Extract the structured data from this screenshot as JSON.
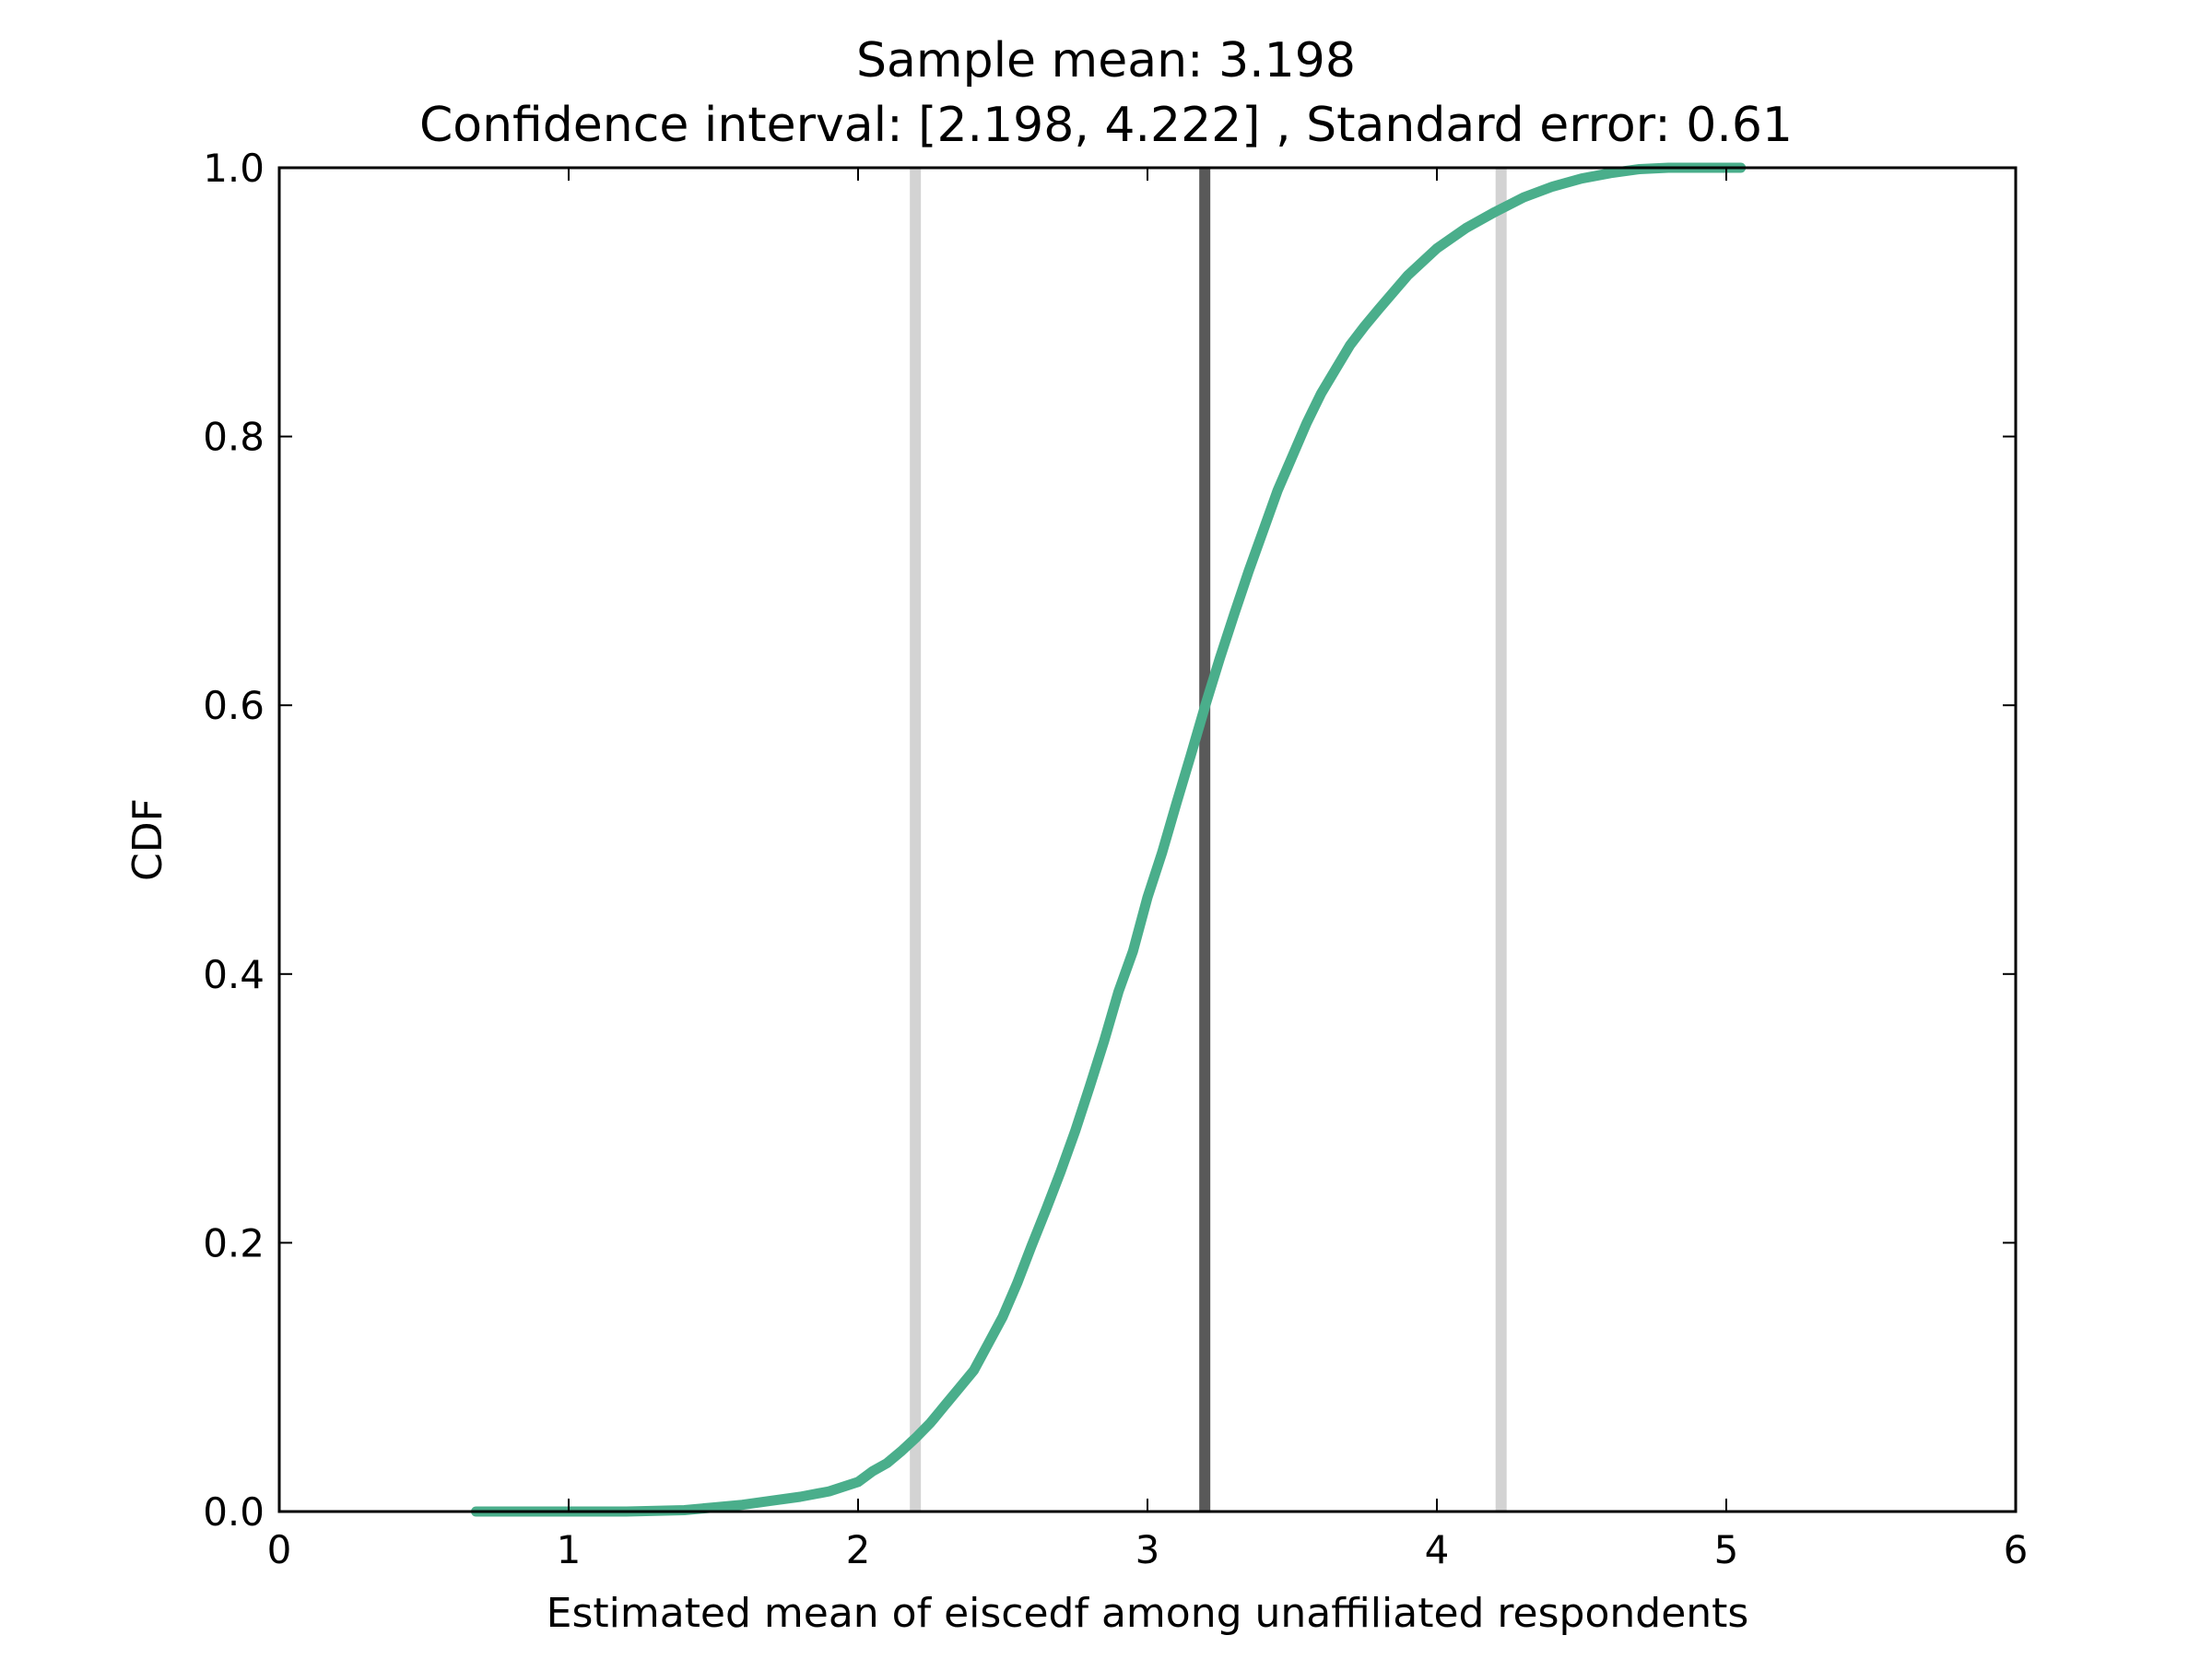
{
  "title_lines": [
    "Sample mean: 3.198",
    "Confidence interval: [2.198, 4.222] , Standard error: 0.61"
  ],
  "chart_data": {
    "type": "line",
    "title": "Sample mean: 3.198\nConfidence interval: [2.198, 4.222] , Standard error: 0.61",
    "xlabel": "Estimated mean of eiscedf among unaffiliated respondents",
    "ylabel": "CDF",
    "xlim": [
      0,
      6
    ],
    "ylim": [
      0,
      1
    ],
    "xticks": [
      0,
      1,
      2,
      3,
      4,
      5,
      6
    ],
    "xtick_labels": [
      "0",
      "1",
      "2",
      "3",
      "4",
      "5",
      "6"
    ],
    "yticks": [
      0,
      0.2,
      0.4,
      0.6,
      0.8,
      1.0
    ],
    "ytick_labels": [
      "0.0",
      "0.2",
      "0.4",
      "0.6",
      "0.8",
      "1.0"
    ],
    "grid": false,
    "vlines": [
      {
        "x": 2.198,
        "color": "#d3d3d3"
      },
      {
        "x": 3.198,
        "color": "#595959"
      },
      {
        "x": 4.222,
        "color": "#d3d3d3"
      }
    ],
    "series": [
      {
        "color": "#4aae8b",
        "x": [
          0.68,
          1.0,
          1.2,
          1.4,
          1.5,
          1.6,
          1.7,
          1.8,
          1.9,
          2.0,
          2.05,
          2.1,
          2.15,
          2.2,
          2.25,
          2.3,
          2.35,
          2.4,
          2.45,
          2.5,
          2.55,
          2.6,
          2.65,
          2.7,
          2.75,
          2.8,
          2.85,
          2.9,
          2.95,
          3.0,
          3.05,
          3.1,
          3.15,
          3.2,
          3.25,
          3.3,
          3.35,
          3.4,
          3.45,
          3.5,
          3.55,
          3.6,
          3.65,
          3.7,
          3.75,
          3.8,
          3.9,
          4.0,
          4.1,
          4.2,
          4.3,
          4.4,
          4.5,
          4.6,
          4.7,
          4.8,
          4.9,
          5.05
        ],
        "y": [
          0.0,
          0.0,
          0.0,
          0.001,
          0.003,
          0.005,
          0.008,
          0.011,
          0.015,
          0.022,
          0.03,
          0.036,
          0.045,
          0.055,
          0.066,
          0.079,
          0.092,
          0.105,
          0.125,
          0.145,
          0.17,
          0.198,
          0.225,
          0.253,
          0.283,
          0.316,
          0.35,
          0.387,
          0.417,
          0.457,
          0.49,
          0.527,
          0.563,
          0.6,
          0.635,
          0.668,
          0.7,
          0.73,
          0.76,
          0.785,
          0.81,
          0.832,
          0.85,
          0.868,
          0.882,
          0.895,
          0.92,
          0.94,
          0.955,
          0.967,
          0.978,
          0.986,
          0.992,
          0.996,
          0.999,
          1.0,
          1.0,
          1.0
        ]
      }
    ]
  }
}
